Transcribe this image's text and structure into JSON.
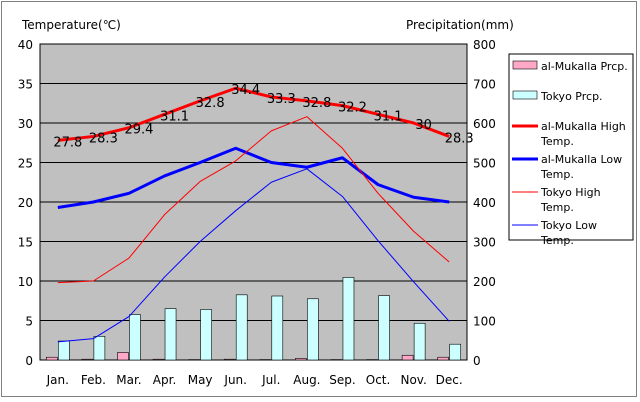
{
  "chart_data": {
    "type": "bar+line",
    "title": "",
    "ylabel_left": "Temperature(℃)",
    "ylabel_right": "Precipitation(mm)",
    "ylim_left": [
      0,
      40
    ],
    "ylim_right": [
      0,
      800
    ],
    "yticks_left": [
      "0",
      "5",
      "10",
      "15",
      "20",
      "25",
      "30",
      "35",
      "40"
    ],
    "yticks_right": [
      "0",
      "100",
      "200",
      "300",
      "400",
      "500",
      "600",
      "700",
      "800"
    ],
    "categories": [
      "Jan.",
      "Feb.",
      "Mar.",
      "Apr.",
      "May",
      "Jun.",
      "Jul.",
      "Aug.",
      "Sep.",
      "Oct.",
      "Nov.",
      "Dec."
    ],
    "grid": true,
    "legend_position": "right",
    "bar_series": [
      {
        "name": "al-Mukalla Prcp.",
        "color": "#ffa8c8",
        "values": [
          7,
          2,
          19,
          2,
          1,
          2,
          1,
          4,
          1,
          1,
          12,
          7
        ]
      },
      {
        "name": "Tokyo Prcp.",
        "color": "#ccffff",
        "values": [
          48,
          60,
          115,
          130,
          128,
          165,
          162,
          155,
          209,
          163,
          93,
          40
        ]
      }
    ],
    "line_series": [
      {
        "name": "al-Mukalla High Temp.",
        "color": "#ff0000",
        "width": 3,
        "values": [
          27.8,
          28.3,
          29.4,
          31.1,
          32.8,
          34.4,
          33.3,
          32.8,
          32.2,
          31.1,
          30,
          28.3
        ],
        "labels": [
          "27.8",
          "28.3",
          "29.4",
          "31.1",
          "32.8",
          "34.4",
          "33.3",
          "32.8",
          "32.2",
          "31.1",
          "30",
          "28.3"
        ]
      },
      {
        "name": "al-Mukalla Low Temp.",
        "color": "#0000ff",
        "width": 3,
        "values": [
          19.3,
          20,
          21.1,
          23.3,
          25,
          26.8,
          25,
          24.4,
          25.6,
          22.2,
          20.6,
          20
        ]
      },
      {
        "name": "Tokyo High Temp.",
        "color": "#ff0000",
        "width": 1,
        "values": [
          9.8,
          10,
          12.9,
          18.4,
          22.6,
          25.2,
          29,
          30.8,
          26.8,
          21.1,
          16.3,
          12.4
        ]
      },
      {
        "name": "Tokyo Low Temp.",
        "color": "#0000ff",
        "width": 1,
        "values": [
          2.3,
          2.7,
          5.5,
          10.5,
          15,
          18.9,
          22.5,
          24.2,
          20.7,
          15.1,
          9.9,
          4.9
        ]
      }
    ]
  }
}
